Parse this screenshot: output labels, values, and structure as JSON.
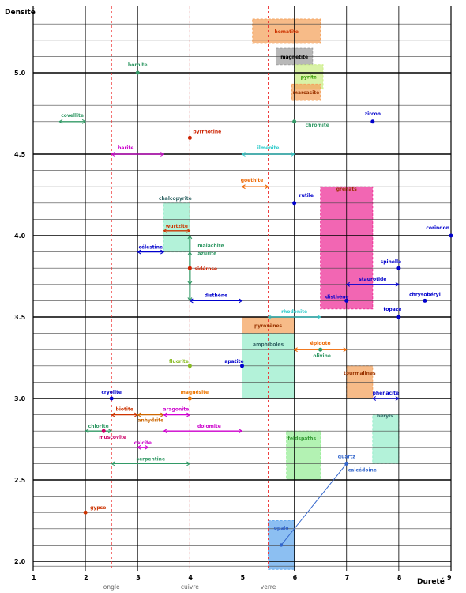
{
  "chart_data": {
    "type": "scatter",
    "title": "",
    "xlabel": "Dureté",
    "ylabel": "Densité",
    "xlim": [
      1,
      9
    ],
    "ylim": [
      1.95,
      5.35
    ],
    "grid": true,
    "x_ticks": [
      "1",
      "2",
      "3",
      "4",
      "5",
      "6",
      "7",
      "8",
      "9"
    ],
    "y_ticks": [
      "2.0",
      "2.5",
      "3.0",
      "3.5",
      "4.0",
      "4.5",
      "5.0"
    ],
    "reference_lines": [
      {
        "label": "ongle",
        "x": 2.5
      },
      {
        "label": "cuivre",
        "x": 4.0
      },
      {
        "label": "verre",
        "x": 5.5
      }
    ],
    "boxes": [
      {
        "name": "hematite",
        "x": [
          5.2,
          6.5
        ],
        "y": [
          5.18,
          5.33
        ],
        "color": "#f4a460",
        "text": "#cc3300"
      },
      {
        "name": "magnetite",
        "x": [
          5.65,
          6.35
        ],
        "y": [
          5.05,
          5.15
        ],
        "color": "#a0a0a0",
        "text": "#000000"
      },
      {
        "name": "pyrite",
        "x": [
          6.0,
          6.55
        ],
        "y": [
          4.9,
          5.05
        ],
        "color": "#ccee88",
        "text": "#339900"
      },
      {
        "name": "marcasite",
        "x": [
          5.95,
          6.5
        ],
        "y": [
          4.83,
          4.93
        ],
        "color": "#f4a460",
        "text": "#993300"
      },
      {
        "name": "grenats",
        "x": [
          6.5,
          7.5
        ],
        "y": [
          3.55,
          4.3
        ],
        "color": "#ee3399",
        "text": "#993300"
      },
      {
        "name": "pyroxènes",
        "x": [
          5.0,
          6.0
        ],
        "y": [
          3.4,
          3.5
        ],
        "color": "#f4a460",
        "text": "#993300"
      },
      {
        "name": "amphiboles",
        "x": [
          5.0,
          6.0
        ],
        "y": [
          3.0,
          3.4
        ],
        "color": "#99eecc",
        "text": "#336666"
      },
      {
        "name": "tourmalines",
        "x": [
          7.0,
          7.5
        ],
        "y": [
          3.0,
          3.2
        ],
        "color": "#f4a460",
        "text": "#993300"
      },
      {
        "name": "feldspaths",
        "x": [
          5.85,
          6.5
        ],
        "y": [
          2.5,
          2.8
        ],
        "color": "#99ee99",
        "text": "#339933"
      },
      {
        "name": "béryls",
        "x": [
          7.5,
          8.0
        ],
        "y": [
          2.6,
          2.9
        ],
        "color": "#99eecc",
        "text": "#336666"
      },
      {
        "name": "opale",
        "x": [
          5.5,
          6.0
        ],
        "y": [
          1.95,
          2.25
        ],
        "color": "#66aaee",
        "text": "#3366cc"
      },
      {
        "name": "chalcopyrite",
        "x": [
          3.5,
          4.0
        ],
        "y": [
          3.9,
          4.2
        ],
        "color": "#99eecc",
        "text": "#336666"
      }
    ],
    "points": [
      {
        "name": "bornite",
        "x": 3.0,
        "y": 5.0,
        "color": "#339966"
      },
      {
        "name": "chromite",
        "x": 6.0,
        "y": 4.7,
        "color": "#339966"
      },
      {
        "name": "zircon",
        "x": 7.5,
        "y": 4.7,
        "color": "#0000cc"
      },
      {
        "name": "pyrrhotine",
        "x": 4.0,
        "y": 4.6,
        "color": "#cc2200"
      },
      {
        "name": "rutile",
        "x": 6.0,
        "y": 4.2,
        "color": "#0000cc"
      },
      {
        "name": "corindon",
        "x": 9.0,
        "y": 4.0,
        "color": "#0000cc"
      },
      {
        "name": "spinelle",
        "x": 8.0,
        "y": 3.8,
        "color": "#0000cc"
      },
      {
        "name": "sidérose",
        "x": 4.0,
        "y": 3.8,
        "color": "#cc2200"
      },
      {
        "name": "chrysobéryl",
        "x": 8.5,
        "y": 3.6,
        "color": "#0000cc"
      },
      {
        "name": "disthène",
        "x": 7.0,
        "y": 3.6,
        "color": "#0000cc"
      },
      {
        "name": "topaze",
        "x": 8.0,
        "y": 3.5,
        "color": "#0000cc"
      },
      {
        "name": "olivine",
        "x": 6.5,
        "y": 3.3,
        "color": "#339966"
      },
      {
        "name": "fluorite",
        "x": 4.0,
        "y": 3.2,
        "color": "#88bb22"
      },
      {
        "name": "apatite",
        "x": 5.0,
        "y": 3.2,
        "color": "#0000cc"
      },
      {
        "name": "cryolite",
        "x": 2.5,
        "y": 3.0,
        "color": "#0000cc"
      },
      {
        "name": "magnésite",
        "x": 4.0,
        "y": 3.0,
        "color": "#ee7700"
      },
      {
        "name": "muscovite",
        "x": 2.35,
        "y": 2.8,
        "color": "#cc0066"
      },
      {
        "name": "quartz",
        "x": 7.0,
        "y": 2.6,
        "color": "#3366cc"
      },
      {
        "name": "gypse",
        "x": 2.0,
        "y": 2.3,
        "color": "#cc3300"
      }
    ],
    "ranges": [
      {
        "name": "covellite",
        "x": [
          1.5,
          2.0
        ],
        "y": 4.7,
        "color": "#339966"
      },
      {
        "name": "barite",
        "x": [
          2.5,
          3.5
        ],
        "y": 4.5,
        "color": "#cc00cc"
      },
      {
        "name": "ilménite",
        "x": [
          5.0,
          6.0
        ],
        "y": 4.5,
        "color": "#33cccc"
      },
      {
        "name": "goethite",
        "x": [
          5.0,
          5.5
        ],
        "y": 4.3,
        "color": "#ee6600"
      },
      {
        "name": "wurtzite",
        "x": [
          3.5,
          4.0
        ],
        "y": 4.03,
        "color": "#cc3300"
      },
      {
        "name": "célestine",
        "x": [
          3.0,
          3.5
        ],
        "y": 3.9,
        "color": "#0000cc"
      },
      {
        "name": "disthène",
        "x": [
          4.0,
          5.0
        ],
        "y": 3.6,
        "color": "#0000cc"
      },
      {
        "name": "staurotide",
        "x": [
          7.0,
          8.0
        ],
        "y": 3.7,
        "color": "#0000cc"
      },
      {
        "name": "rhodonite",
        "x": [
          5.5,
          6.5
        ],
        "y": 3.5,
        "color": "#33cccc"
      },
      {
        "name": "épidote",
        "x": [
          6.0,
          7.0
        ],
        "y": 3.3,
        "color": "#ee6600"
      },
      {
        "name": "phénacite",
        "x": [
          7.5,
          8.0
        ],
        "y": 3.0,
        "color": "#0000cc"
      },
      {
        "name": "biotite",
        "x": [
          2.5,
          3.0
        ],
        "y": 2.9,
        "color": "#cc3300"
      },
      {
        "name": "anhydrite",
        "x": [
          3.0,
          3.5
        ],
        "y": 2.9,
        "color": "#cc6600"
      },
      {
        "name": "aragonite",
        "x": [
          3.5,
          4.0
        ],
        "y": 2.9,
        "color": "#cc00cc"
      },
      {
        "name": "chlorite",
        "x": [
          2.0,
          2.5
        ],
        "y": 2.8,
        "color": "#339966"
      },
      {
        "name": "dolomite",
        "x": [
          3.5,
          5.0
        ],
        "y": 2.8,
        "color": "#cc00cc"
      },
      {
        "name": "calcite",
        "x": [
          3.0,
          3.2
        ],
        "y": 2.7,
        "color": "#cc00cc"
      },
      {
        "name": "serpentine",
        "x": [
          2.5,
          4.0
        ],
        "y": 2.6,
        "color": "#339966"
      }
    ],
    "vertical_ranges": [
      {
        "name": "malachite",
        "x": 4.0,
        "y": [
          3.6,
          4.0
        ],
        "color": "#339966"
      },
      {
        "name": "azurite",
        "x": 4.0,
        "y": [
          3.7,
          3.9
        ],
        "color": "#339966"
      }
    ],
    "links": [
      {
        "name": "calcédoine",
        "from": [
          7.0,
          2.6
        ],
        "to": [
          5.75,
          2.1
        ],
        "color": "#3366cc"
      }
    ]
  }
}
